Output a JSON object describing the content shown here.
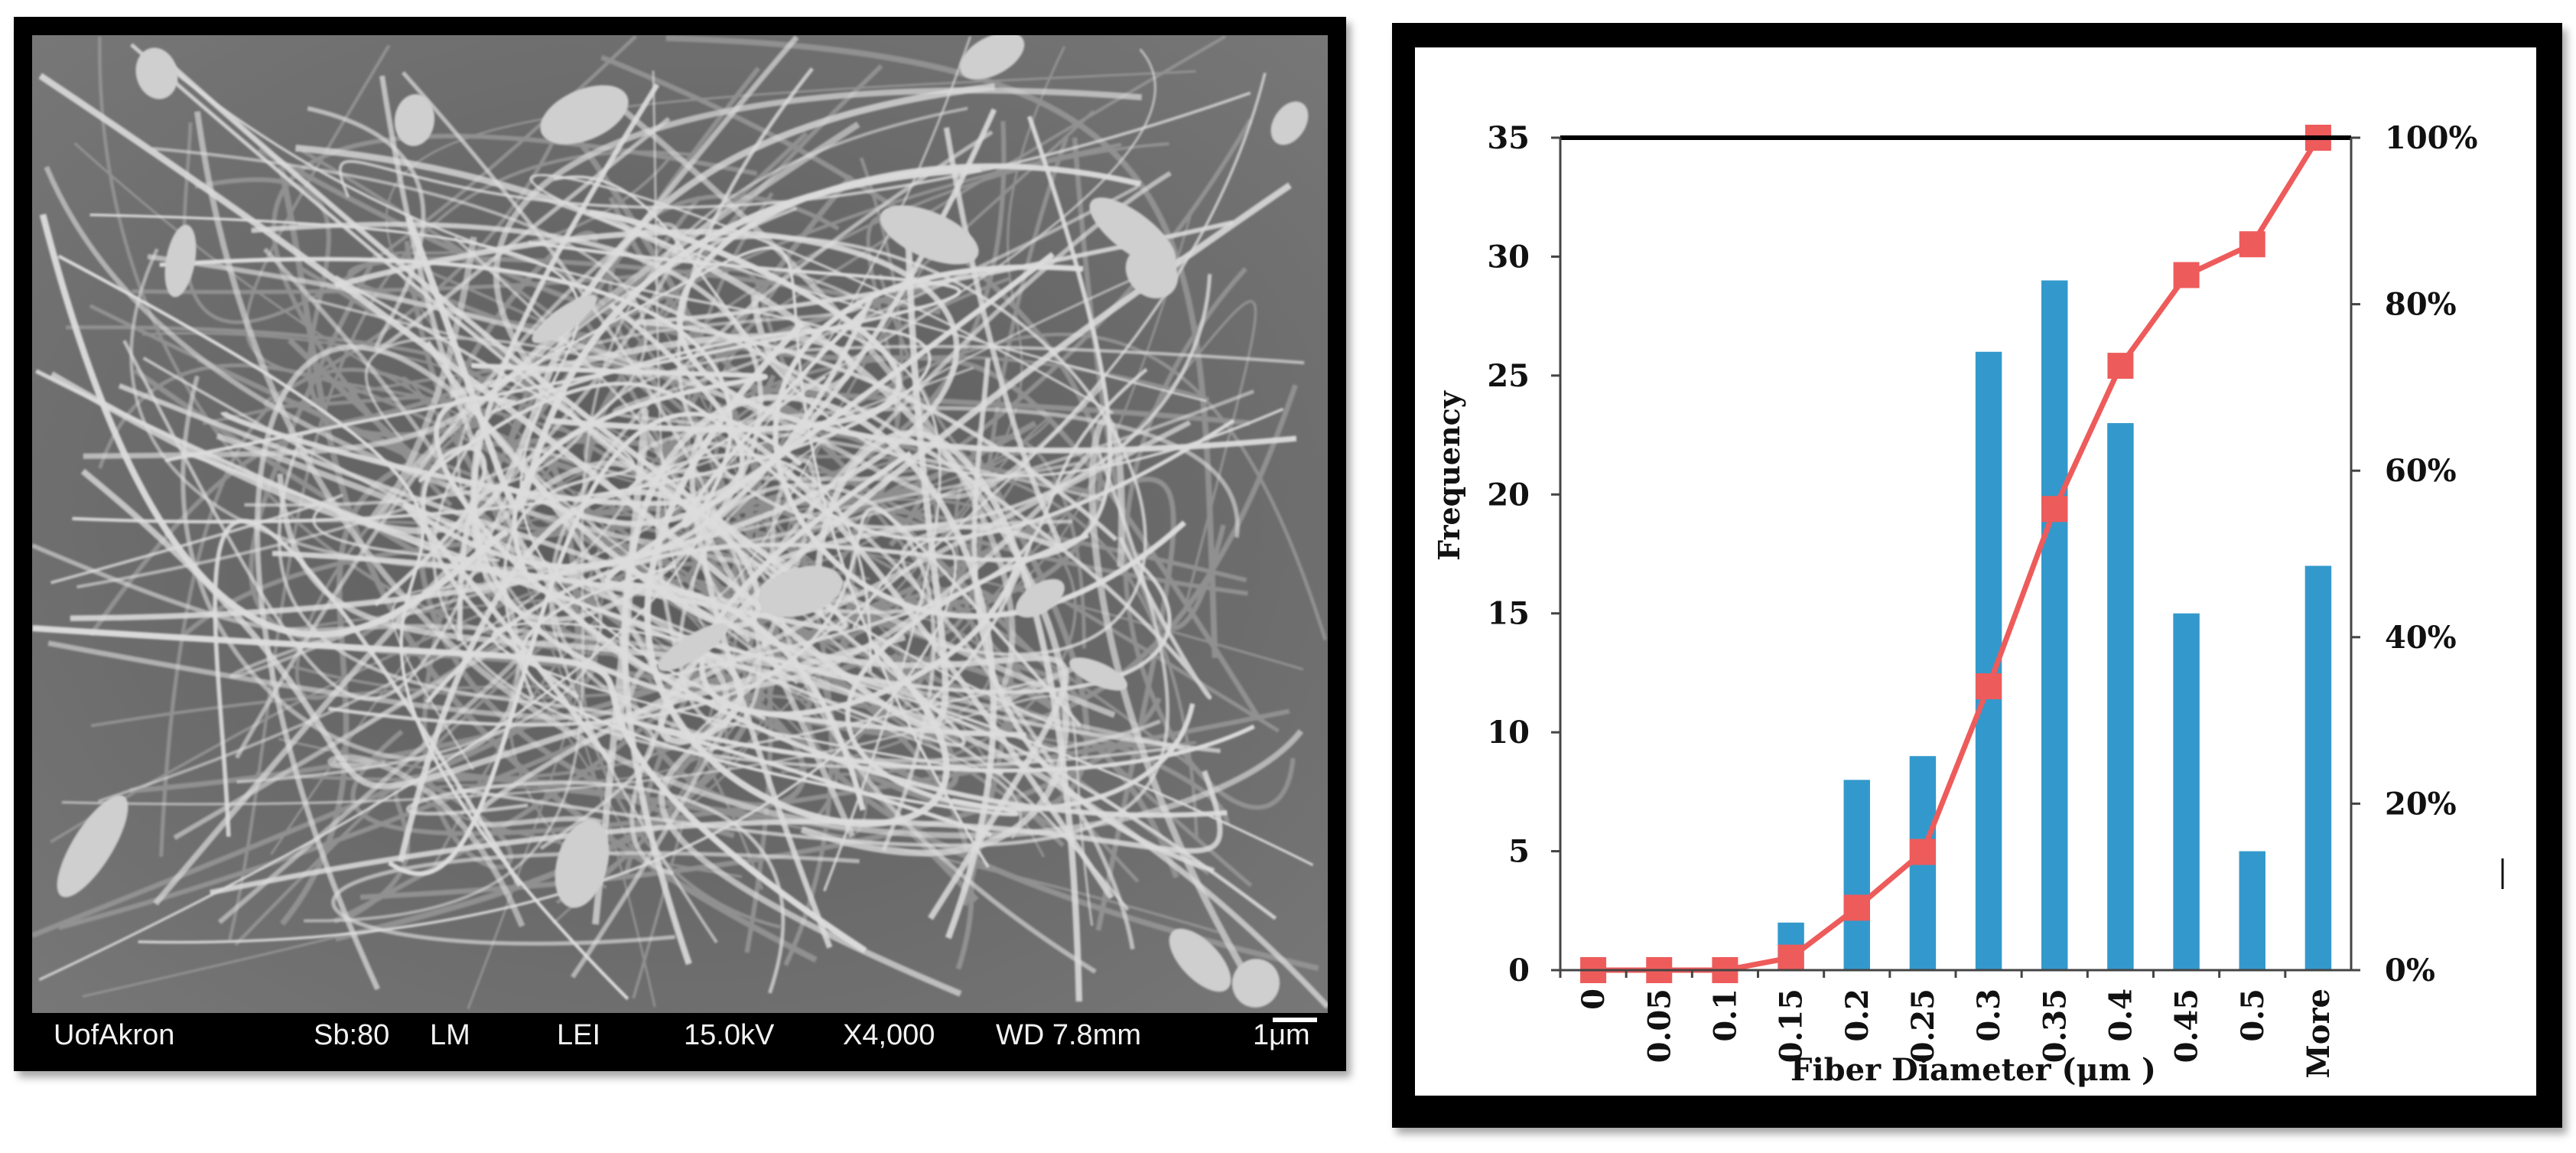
{
  "micrograph": {
    "info_bar": {
      "institution": "UofAkron",
      "sample": "Sb:80",
      "mode": "LM",
      "detector": "LEI",
      "voltage": "15.0kV",
      "magnification": "X4,000",
      "working_distance": "WD 7.8mm",
      "scale_label": "1μm"
    }
  },
  "chart_data": {
    "type": "bar",
    "title": "",
    "xlabel": "Fiber Diameter (μm )",
    "ylabel": "Frequency",
    "y2label": "",
    "categories": [
      "0",
      "0.05",
      "0.1",
      "0.15",
      "0.2",
      "0.25",
      "0.3",
      "0.35",
      "0.4",
      "0.45",
      "0.5",
      "More"
    ],
    "ylim": [
      0,
      35
    ],
    "yticks": [
      "0",
      "5",
      "10",
      "15",
      "20",
      "25",
      "30",
      "35"
    ],
    "y2lim": [
      0,
      100
    ],
    "y2ticks": [
      "0%",
      "20%",
      "40%",
      "60%",
      "80%",
      "100%"
    ],
    "series": [
      {
        "name": "",
        "kind": "bar",
        "axis": "left",
        "color": "#3399cc",
        "values": [
          0,
          0,
          0,
          2,
          8,
          9,
          26,
          29,
          23,
          15,
          5,
          17
        ]
      },
      {
        "name": "",
        "kind": "line",
        "marker": "square",
        "axis": "right",
        "color": "#ee5b5b",
        "values": [
          0,
          0,
          0,
          1.5,
          7.5,
          14.2,
          34.1,
          55.4,
          72.6,
          83.5,
          87.2,
          100
        ]
      }
    ],
    "grid": false,
    "legend": "none"
  }
}
